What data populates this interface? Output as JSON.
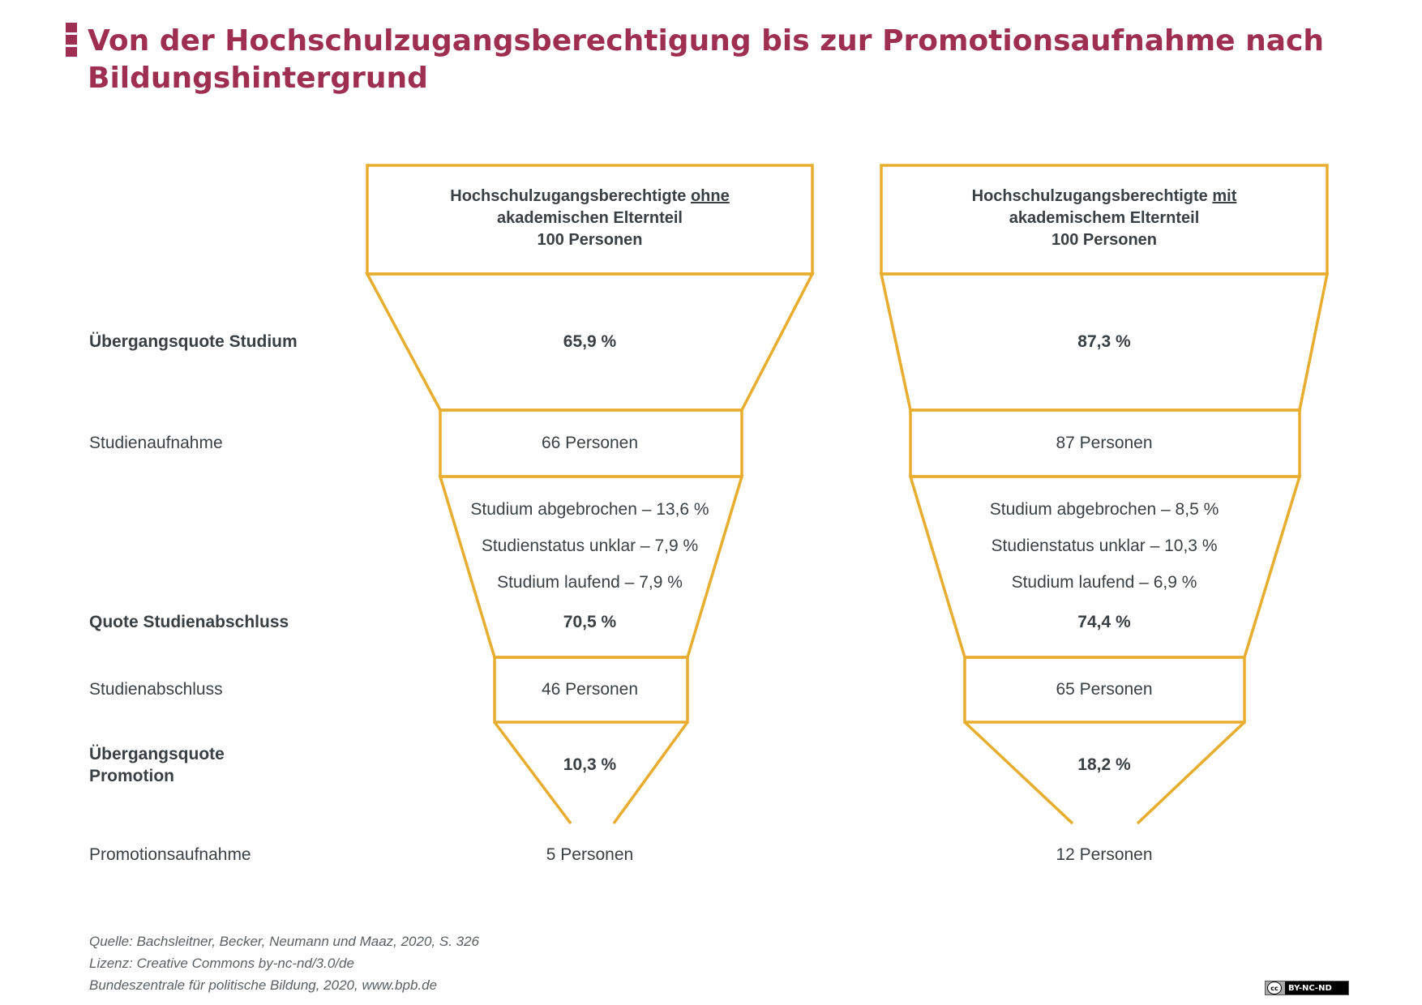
{
  "title": "Von der Hochschulzugangsberechtigung bis zur Promotionsaufnahme nach Bildungshintergrund",
  "colors": {
    "accent": "#9e2f51",
    "funnel": "#e8ad2e",
    "text": "#3a3f44"
  },
  "row_labels": {
    "uebergang_studium": "Übergangsquote Studium",
    "studienaufnahme": "Studienaufnahme",
    "quote_abschluss": "Quote Studienabschluss",
    "studienabschluss": "Studienabschluss",
    "uebergang_promotion_1": "Übergangsquote",
    "uebergang_promotion_2": "Promotion",
    "promotionsaufnahme": "Promotionsaufnahme"
  },
  "funnels": [
    {
      "header_line1_prefix": "Hochschulzugangsberechtigte ",
      "header_line1_emph": "ohne",
      "header_line2": "akademischen Elternteil",
      "header_line3": "100 Personen",
      "uebergang_studium": "65,9 %",
      "studienaufnahme": "66 Personen",
      "abgebrochen": "Studium abgebrochen – 13,6 %",
      "unklar": "Studienstatus unklar – 7,9 %",
      "laufend": "Studium laufend – 7,9 %",
      "quote_abschluss": "70,5 %",
      "studienabschluss": "46 Personen",
      "uebergang_promotion": "10,3 %",
      "promotionsaufnahme": "5 Personen"
    },
    {
      "header_line1_prefix": "Hochschulzugangsberechtigte ",
      "header_line1_emph": "mit",
      "header_line2": "akademischem Elternteil",
      "header_line3": "100 Personen",
      "uebergang_studium": "87,3 %",
      "studienaufnahme": "87 Personen",
      "abgebrochen": "Studium abgebrochen – 8,5 %",
      "unklar": "Studienstatus unklar – 10,3 %",
      "laufend": "Studium laufend – 6,9 %",
      "quote_abschluss": "74,4 %",
      "studienabschluss": "65 Personen",
      "uebergang_promotion": "18,2 %",
      "promotionsaufnahme": "12 Personen"
    }
  ],
  "footer": {
    "source": "Quelle: Bachsleitner, Becker, Neumann und Maaz, 2020, S. 326",
    "license": "Lizenz: Creative Commons by-nc-nd/3.0/de",
    "publisher": "Bundeszentrale für politische Bildung, 2020, www.bpb.de"
  },
  "license_badge": {
    "cc": "cc",
    "text": "BY-NC-ND"
  }
}
